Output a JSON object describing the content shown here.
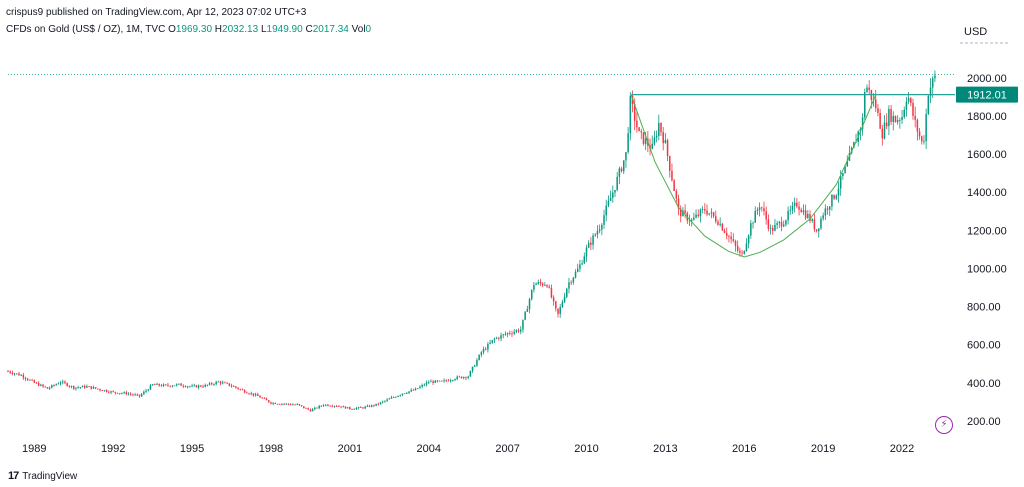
{
  "header": {
    "publish_text": "crispus9 published on TradingView.com, Apr 12, 2023 07:02 UTC+3",
    "symbol": "CFDs on Gold (US$ / OZ), 1M, TVC",
    "open_label": "O",
    "open_value": "1969.30",
    "high_label": "H",
    "high_value": "2032.13",
    "low_label": "L",
    "low_value": "1949.90",
    "close_label": "C",
    "close_value": "2017.34",
    "vol_label": "Vol",
    "vol_value": "0"
  },
  "currency": "USD",
  "brand": {
    "mark": "17",
    "name": "TradingView"
  },
  "colors": {
    "up": "#089981",
    "down": "#f23645",
    "cup": "#4caf50",
    "level_line": "#26a69a",
    "price_tag": "#00897b"
  },
  "chart_data": {
    "type": "candlestick",
    "x_ticks": [
      "1989",
      "1992",
      "1995",
      "1998",
      "2001",
      "2004",
      "2007",
      "2010",
      "2013",
      "2016",
      "2019",
      "2022"
    ],
    "x_tick_years": [
      1989,
      1992,
      1995,
      1998,
      2001,
      2004,
      2007,
      2010,
      2013,
      2016,
      2019,
      2022
    ],
    "x_range": [
      1988.0,
      2023.9
    ],
    "y_ticks": [
      200,
      400,
      600,
      800,
      1000,
      1200,
      1400,
      1600,
      1800,
      2000
    ],
    "y_tick_labels": [
      "200.00",
      "400.00",
      "600.00",
      "800.00",
      "1000.00",
      "1200.00",
      "1400.00",
      "1600.00",
      "1800.00",
      "2000.00"
    ],
    "y_range": [
      100,
      2120
    ],
    "series": [
      {
        "points": [
          [
            1988.0,
            460
          ],
          [
            1988.5,
            440
          ],
          [
            1989.0,
            400
          ],
          [
            1989.5,
            370
          ],
          [
            1990.0,
            405
          ],
          [
            1990.5,
            375
          ],
          [
            1991.0,
            380
          ],
          [
            1991.5,
            365
          ],
          [
            1992.0,
            350
          ],
          [
            1992.5,
            345
          ],
          [
            1993.0,
            330
          ],
          [
            1993.5,
            390
          ],
          [
            1994.0,
            385
          ],
          [
            1994.5,
            390
          ],
          [
            1995.0,
            380
          ],
          [
            1995.5,
            385
          ],
          [
            1996.0,
            405
          ],
          [
            1996.5,
            385
          ],
          [
            1997.0,
            355
          ],
          [
            1997.5,
            330
          ],
          [
            1998.0,
            295
          ],
          [
            1998.5,
            290
          ],
          [
            1999.0,
            285
          ],
          [
            1999.5,
            255
          ],
          [
            2000.0,
            285
          ],
          [
            2000.5,
            280
          ],
          [
            2001.0,
            265
          ],
          [
            2001.5,
            270
          ],
          [
            2002.0,
            285
          ],
          [
            2002.5,
            315
          ],
          [
            2003.0,
            345
          ],
          [
            2003.5,
            365
          ],
          [
            2004.0,
            405
          ],
          [
            2004.5,
            405
          ],
          [
            2005.0,
            425
          ],
          [
            2005.5,
            435
          ],
          [
            2006.0,
            560
          ],
          [
            2006.5,
            630
          ],
          [
            2007.0,
            660
          ],
          [
            2007.5,
            680
          ],
          [
            2008.0,
            920
          ],
          [
            2008.5,
            920
          ],
          [
            2008.9,
            750
          ],
          [
            2009.3,
            920
          ],
          [
            2009.7,
            1000
          ],
          [
            2010.0,
            1100
          ],
          [
            2010.5,
            1220
          ],
          [
            2011.0,
            1400
          ],
          [
            2011.5,
            1600
          ],
          [
            2011.67,
            1880
          ],
          [
            2012.0,
            1700
          ],
          [
            2012.5,
            1630
          ],
          [
            2012.75,
            1760
          ],
          [
            2013.0,
            1650
          ],
          [
            2013.5,
            1300
          ],
          [
            2014.0,
            1250
          ],
          [
            2014.5,
            1310
          ],
          [
            2015.0,
            1250
          ],
          [
            2015.5,
            1150
          ],
          [
            2015.9,
            1060
          ],
          [
            2016.25,
            1230
          ],
          [
            2016.6,
            1340
          ],
          [
            2017.0,
            1200
          ],
          [
            2017.5,
            1250
          ],
          [
            2018.0,
            1340
          ],
          [
            2018.5,
            1260
          ],
          [
            2018.75,
            1200
          ],
          [
            2019.0,
            1290
          ],
          [
            2019.5,
            1400
          ],
          [
            2020.0,
            1580
          ],
          [
            2020.5,
            1780
          ],
          [
            2020.6,
            1970
          ],
          [
            2021.0,
            1850
          ],
          [
            2021.25,
            1710
          ],
          [
            2021.5,
            1810
          ],
          [
            2021.75,
            1780
          ],
          [
            2022.0,
            1800
          ],
          [
            2022.2,
            1920
          ],
          [
            2022.5,
            1760
          ],
          [
            2022.8,
            1640
          ],
          [
            2023.0,
            1930
          ],
          [
            2023.3,
            2017
          ]
        ]
      }
    ],
    "annotations": {
      "resistance_level": 1912.01,
      "resistance_label": "1912.01",
      "resistance_x": [
        2011.7,
        2023.35
      ],
      "last_price": 2017.34,
      "cup_curve": [
        [
          2011.7,
          1910
        ],
        [
          2012.6,
          1560
        ],
        [
          2013.5,
          1320
        ],
        [
          2014.5,
          1170
        ],
        [
          2015.4,
          1090
        ],
        [
          2016.0,
          1060
        ],
        [
          2016.6,
          1085
        ],
        [
          2017.5,
          1150
        ],
        [
          2018.5,
          1260
        ],
        [
          2019.5,
          1440
        ],
        [
          2020.3,
          1680
        ],
        [
          2021.0,
          1910
        ]
      ]
    }
  }
}
